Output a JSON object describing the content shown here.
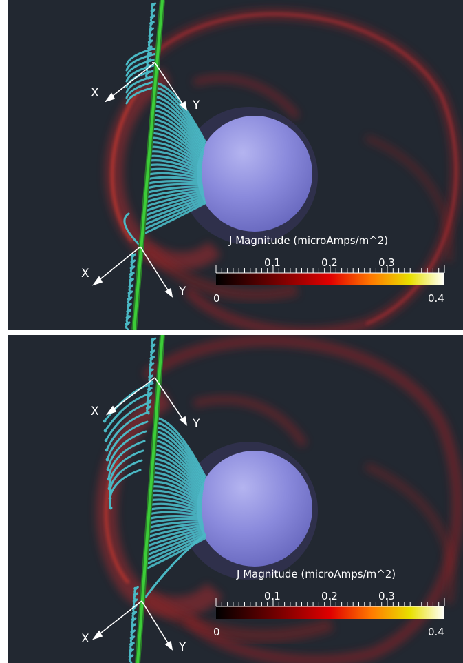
{
  "panels": [
    {
      "id": "top",
      "axis_labels": {
        "upper_x": "X",
        "upper_y": "Y",
        "lower_x": "X",
        "lower_y": "Y"
      },
      "colorbar": {
        "title": "J Magnitude (microAmps/m^2)",
        "tick_labels": [
          "0.1",
          "0.2",
          "0.3"
        ],
        "min_label": "0",
        "max_label": "0.4"
      }
    },
    {
      "id": "bottom",
      "axis_labels": {
        "upper_x": "X",
        "upper_y": "Y",
        "lower_x": "X",
        "lower_y": "Y"
      },
      "colorbar": {
        "title": "J Magnitude (microAmps/m^2)",
        "tick_labels": [
          "0.1",
          "0.2",
          "0.3"
        ],
        "min_label": "0",
        "max_label": "0.4"
      }
    }
  ],
  "colors": {
    "background": "#222831",
    "current_glow": "#b0282c",
    "field_lines": "#4ab8c4",
    "spacecraft_line": "#39c236",
    "planet": "#8b8bdc",
    "axis_arrows": "#ffffff"
  },
  "icons": [
    "planet-sphere",
    "field-line-tubes",
    "coordinate-axes-arrows",
    "color-scale-bar"
  ]
}
